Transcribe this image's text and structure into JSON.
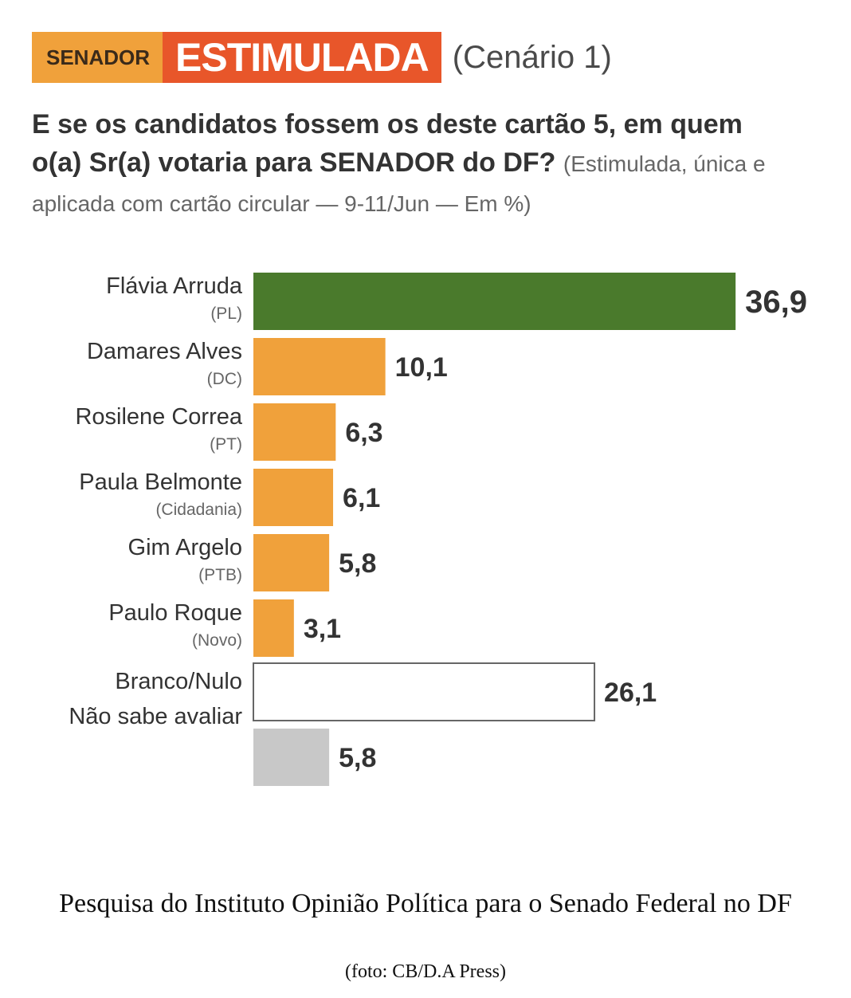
{
  "header": {
    "tag_senador": "SENADOR",
    "tag_estimulada": "ESTIMULADA",
    "tag_cenario": "(Cenário 1)"
  },
  "question": {
    "main": "E se os candidatos fossem os deste cartão 5, em quem o(a) Sr(a) votaria para SENADOR do DF?",
    "sub": "(Estimulada, única e aplicada com cartão circular — 9-11/Jun — Em %)"
  },
  "chart_data": {
    "type": "bar",
    "orientation": "horizontal",
    "categories": [
      "Flávia Arruda",
      "Damares Alves",
      "Rosilene Correa",
      "Paula Belmonte",
      "Gim Argelo",
      "Paulo Roque",
      "Branco/Nulo",
      "Não sabe avaliar"
    ],
    "parties": [
      "(PL)",
      "(DC)",
      "(PT)",
      "(Cidadania)",
      "(PTB)",
      "(Novo)",
      "",
      ""
    ],
    "values": [
      36.9,
      10.1,
      6.3,
      6.1,
      5.8,
      3.1,
      26.1,
      5.8
    ],
    "value_labels": [
      "36,9",
      "10,1",
      "6,3",
      "6,1",
      "5,8",
      "3,1",
      "26,1",
      "5,8"
    ],
    "colors": [
      "#4a7a2c",
      "#f0a13b",
      "#f0a13b",
      "#f0a13b",
      "#f0a13b",
      "#f0a13b",
      "#ffffff",
      "#c8c8c8"
    ],
    "unit": "%"
  },
  "caption": {
    "main": "Pesquisa do Instituto Opinião Política para o Senado Federal no DF",
    "credit": "(foto: CB/D.A Press)"
  }
}
